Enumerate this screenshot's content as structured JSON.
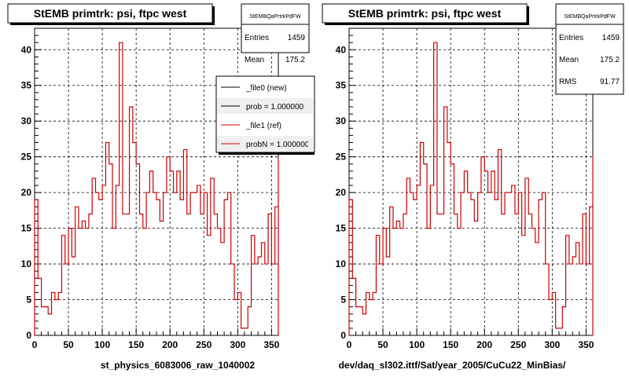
{
  "panels": [
    {
      "title": "StEMB primtrk: psi, ftpc west",
      "stats": {
        "name": "StEMBQaPrtrkPdFW",
        "rows": [
          {
            "label": "Entries",
            "value": "1459"
          },
          {
            "label": "Mean",
            "value": "175.2"
          }
        ]
      },
      "legend": [
        {
          "label": "_file0 (new)",
          "color": "#000000"
        },
        {
          "label": "prob = 1.000000",
          "color": "#000000"
        },
        {
          "label": "_file1 (ref)",
          "color": "#cc0000"
        },
        {
          "label": "probN = 1.000000",
          "color": "#cc0000"
        }
      ],
      "caption": "st_physics_6083006_raw_1040002"
    },
    {
      "title": "StEMB primtrk: psi, ftpc west",
      "stats": {
        "name": "StEMBQaPrtrkPdFW",
        "rows": [
          {
            "label": "Entries",
            "value": "1459"
          },
          {
            "label": "Mean",
            "value": "175.2"
          },
          {
            "label": "RMS",
            "value": "91.77"
          }
        ]
      },
      "legend": [],
      "caption": "dev/daq_sl302.ittf/Sat/year_2005/CuCu22_MinBias/"
    }
  ],
  "chart_data": {
    "type": "bar",
    "bin_width": 5,
    "xlim": [
      0,
      360
    ],
    "ylim": [
      0,
      43
    ],
    "xticks": [
      0,
      50,
      100,
      150,
      200,
      250,
      300,
      350
    ],
    "yticks": [
      0,
      5,
      10,
      15,
      20,
      25,
      30,
      35,
      40
    ],
    "grid": true,
    "series_color": "#cc0000",
    "bin_edges_start": 0,
    "counts": [
      19,
      8,
      4,
      4,
      3,
      6,
      5,
      6,
      14,
      10,
      15,
      11,
      18,
      15,
      16,
      15,
      17,
      22,
      20,
      19,
      21,
      27,
      24,
      15,
      21,
      41,
      17,
      17,
      32,
      27,
      24,
      17,
      15,
      20,
      23,
      20,
      19,
      16,
      20,
      25,
      23,
      20,
      23,
      19,
      26,
      17,
      20,
      20,
      21,
      17,
      20,
      14,
      22,
      17,
      15,
      13,
      19,
      20,
      10,
      5,
      6,
      1,
      1,
      4,
      14,
      10,
      11,
      13,
      10,
      17,
      10,
      18,
      25
    ]
  }
}
